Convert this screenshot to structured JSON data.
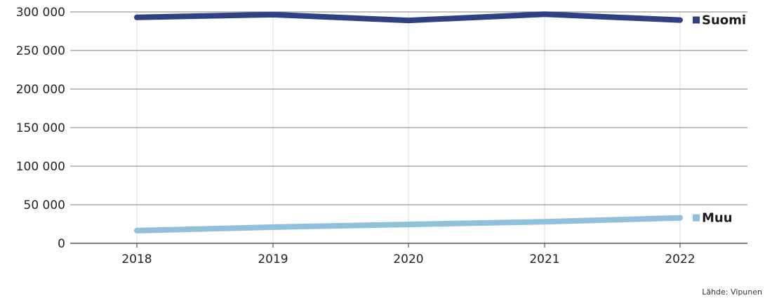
{
  "chart_data": {
    "type": "line",
    "x": [
      "2018",
      "2019",
      "2020",
      "2021",
      "2022"
    ],
    "series": [
      {
        "name": "Suomi",
        "values": [
          293000,
          296500,
          289000,
          297000,
          289500
        ],
        "color": "#2e4185"
      },
      {
        "name": "Muu",
        "values": [
          16500,
          21000,
          24500,
          28000,
          33000
        ],
        "color": "#8fc0dc"
      }
    ],
    "ylim": [
      0,
      300000
    ],
    "yticks": [
      0,
      50000,
      100000,
      150000,
      200000,
      250000,
      300000
    ],
    "ytick_labels": [
      "0",
      "50 000",
      "100 000",
      "150 000",
      "200 000",
      "250 000",
      "300 000"
    ],
    "legend_placement": "right, at line ends",
    "grid": {
      "horizontal": true,
      "vertical": true
    },
    "colors": {
      "grid_horizontal": "#7f7f7f",
      "grid_vertical": "#cfe3e6",
      "axis": "#333333"
    }
  },
  "source": "Lähde: Vipunen"
}
